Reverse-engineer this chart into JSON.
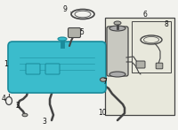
{
  "bg_color": "#f2f2ee",
  "tank_color": "#3bbccc",
  "tank_edge": "#1a8a9a",
  "line_color": "#444444",
  "box_bg": "#e8e8dc",
  "part_gray": "#b0b0a8",
  "part_dark": "#888880",
  "white": "#f8f8f8",
  "figsize": [
    2.0,
    1.47
  ],
  "dpi": 100
}
